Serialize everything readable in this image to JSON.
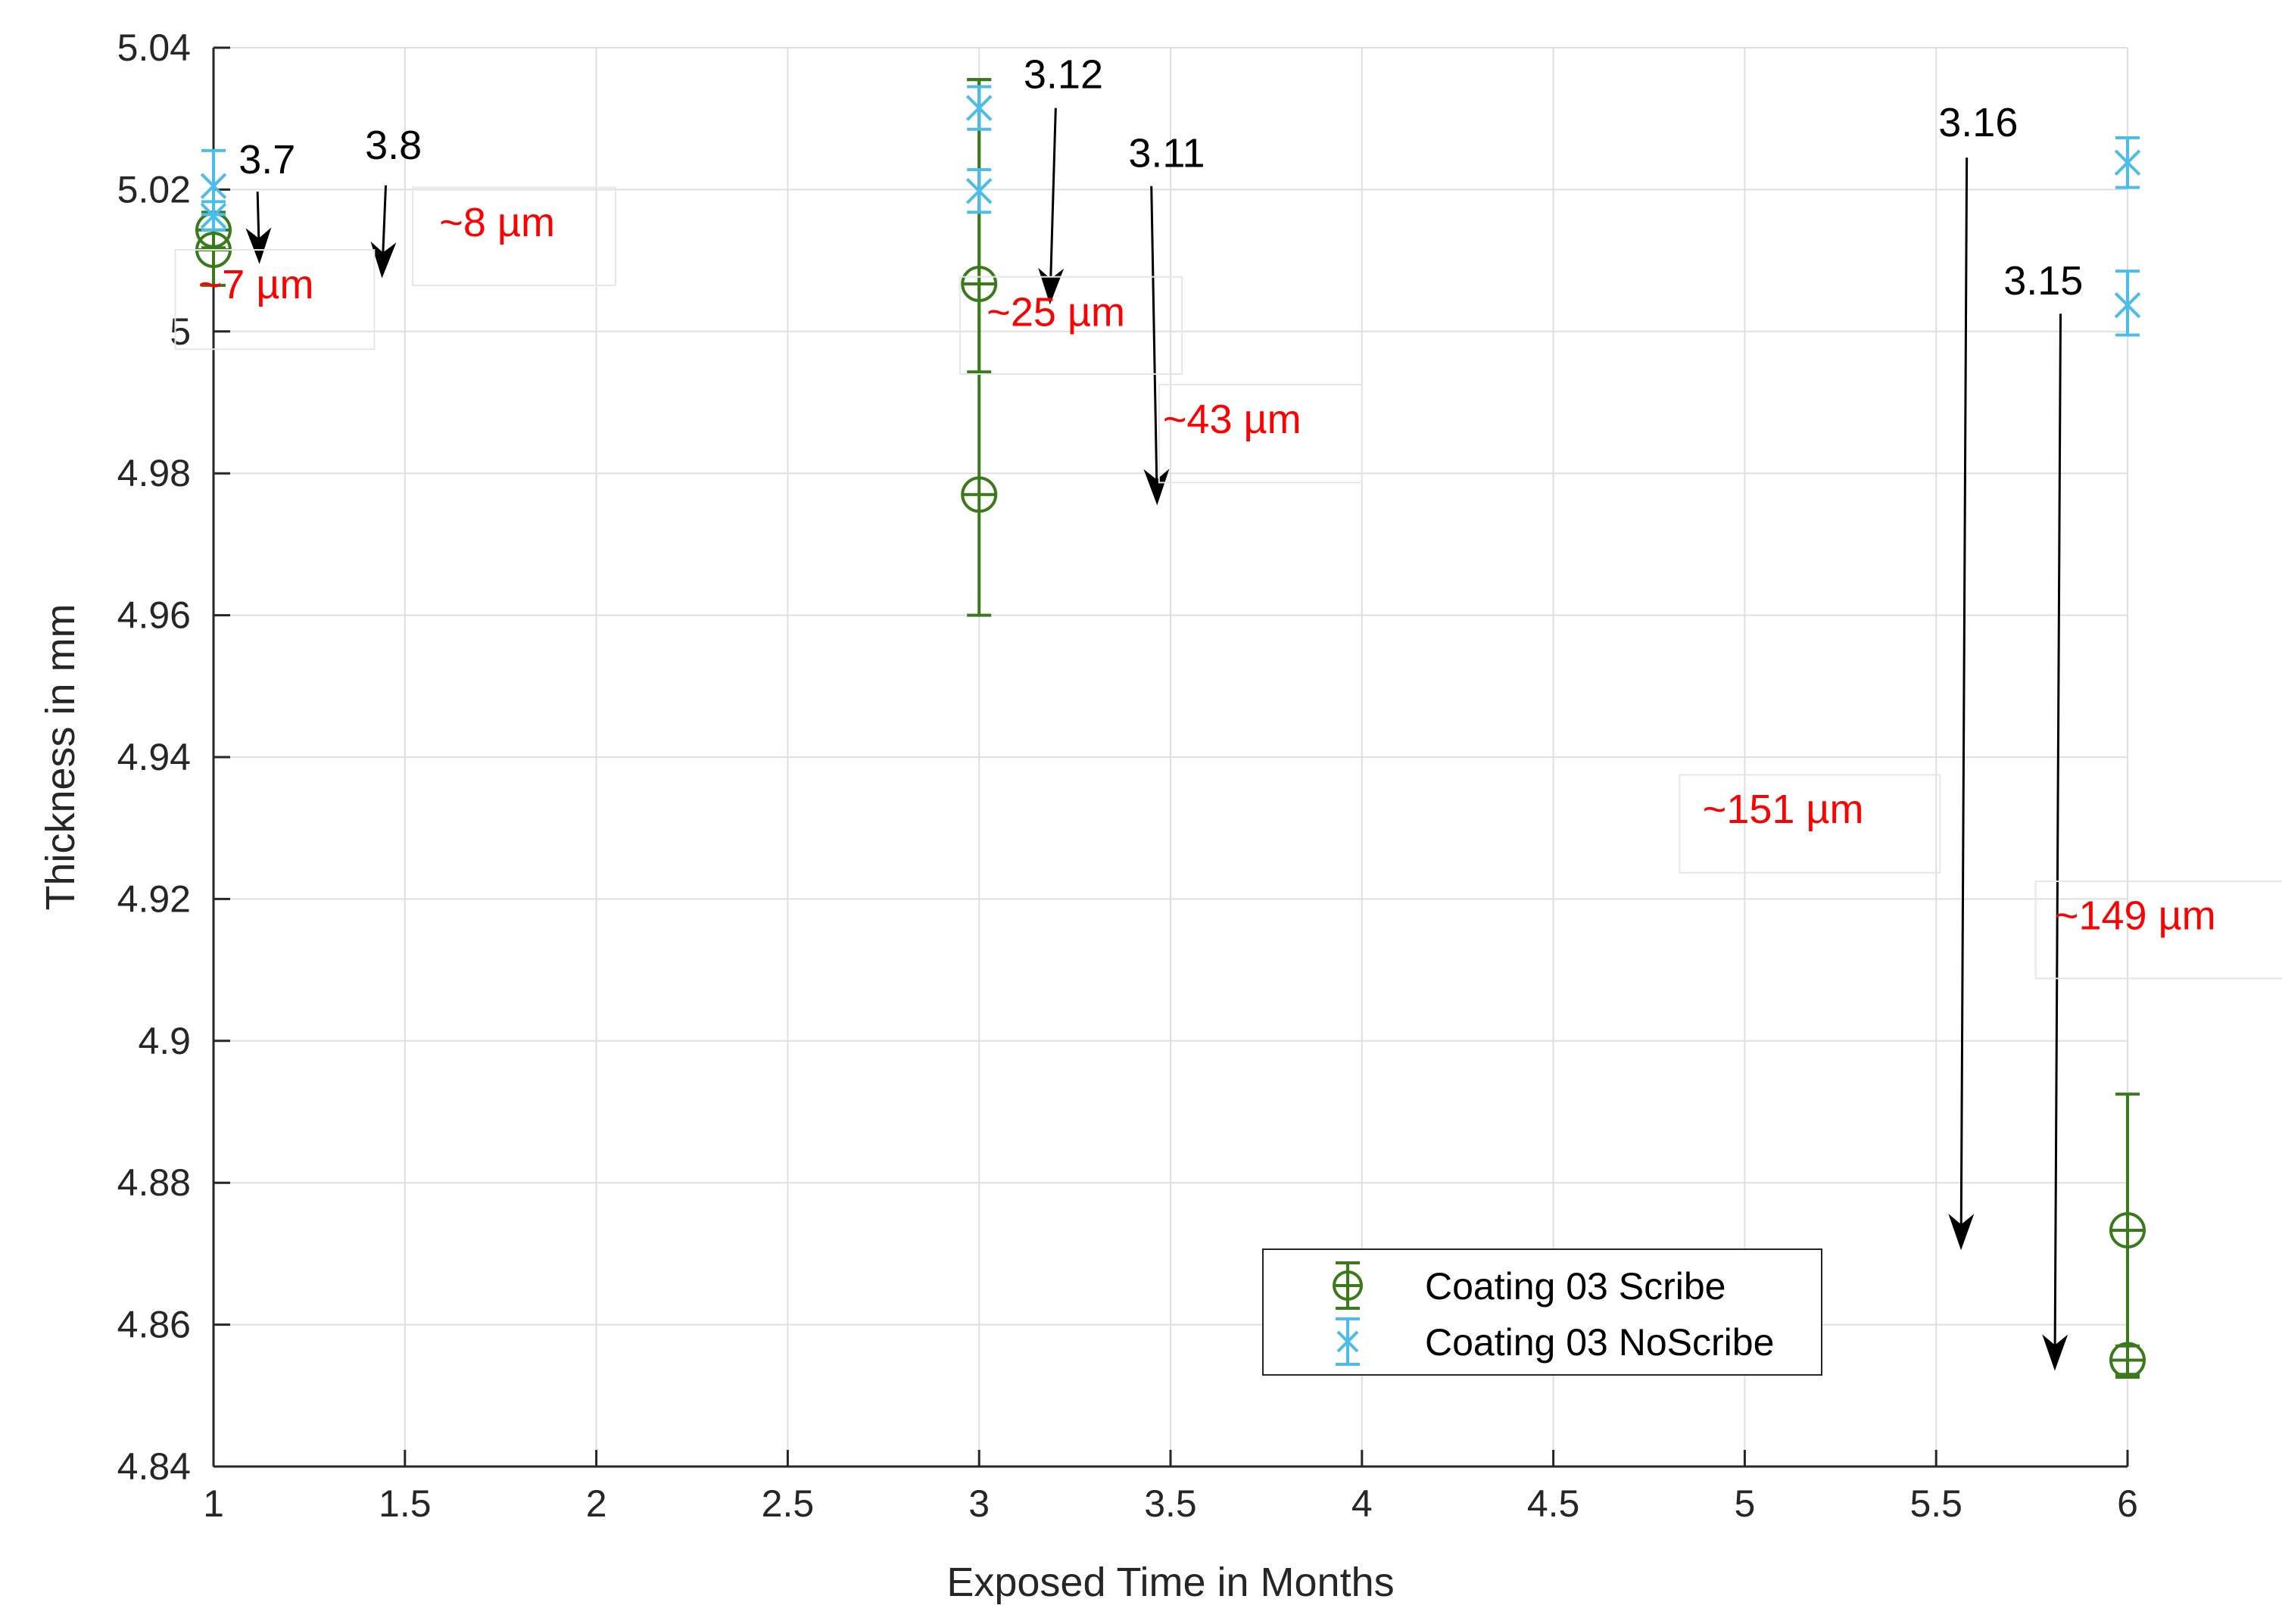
{
  "chart_data": {
    "type": "scatter",
    "title": "",
    "xlabel": "Exposed Time in Months",
    "ylabel": "Thickness in mm",
    "xlim": [
      1,
      6
    ],
    "ylim": [
      4.84,
      5.04
    ],
    "xticks": [
      {
        "value": 1,
        "label": "1"
      },
      {
        "value": 1.5,
        "label": "1.5"
      },
      {
        "value": 2,
        "label": "2"
      },
      {
        "value": 2.5,
        "label": "2.5"
      },
      {
        "value": 3,
        "label": "3"
      },
      {
        "value": 3.5,
        "label": "3.5"
      },
      {
        "value": 4,
        "label": "4"
      },
      {
        "value": 4.5,
        "label": "4.5"
      },
      {
        "value": 5,
        "label": "5"
      },
      {
        "value": 5.5,
        "label": "5.5"
      },
      {
        "value": 6,
        "label": "6"
      }
    ],
    "yticks": [
      {
        "value": 4.84,
        "label": "4.84"
      },
      {
        "value": 4.86,
        "label": "4.86"
      },
      {
        "value": 4.88,
        "label": "4.88"
      },
      {
        "value": 4.9,
        "label": "4.9"
      },
      {
        "value": 4.92,
        "label": "4.92"
      },
      {
        "value": 4.94,
        "label": "4.94"
      },
      {
        "value": 4.96,
        "label": "4.96"
      },
      {
        "value": 4.98,
        "label": "4.98"
      },
      {
        "value": 5,
        "label": "5"
      },
      {
        "value": 5.02,
        "label": "5.02"
      },
      {
        "value": 5.04,
        "label": "5.04"
      }
    ],
    "grid": true,
    "legend_position": "bottom-right",
    "series": [
      {
        "name": "Coating 03 Scribe",
        "color": "#3b7a1a",
        "marker": "circle",
        "points": [
          {
            "x": 1,
            "y": 5.0115,
            "lo": 5.0065,
            "hi": 5.0165
          },
          {
            "x": 1,
            "y": 5.0143,
            "lo": 5.0118,
            "hi": 5.0168
          },
          {
            "x": 3,
            "y": 5.0067,
            "lo": 4.9943,
            "hi": 5.0355
          },
          {
            "x": 3,
            "y": 4.977,
            "lo": 4.96,
            "hi": 5.0355
          },
          {
            "x": 6,
            "y": 4.8733,
            "lo": 4.8526,
            "hi": 4.8925
          },
          {
            "x": 6,
            "y": 4.855,
            "lo": 4.853,
            "hi": 4.857
          }
        ]
      },
      {
        "name": "Coating 03 NoScribe",
        "color": "#4cbde8",
        "marker": "x",
        "points": [
          {
            "x": 1,
            "y": 5.0205,
            "lo": 5.0165,
            "hi": 5.0255
          },
          {
            "x": 1,
            "y": 5.0163,
            "lo": 5.0143,
            "hi": 5.0183
          },
          {
            "x": 3,
            "y": 5.0315,
            "lo": 5.0285,
            "hi": 5.0345
          },
          {
            "x": 3,
            "y": 5.0198,
            "lo": 5.0168,
            "hi": 5.0228
          },
          {
            "x": 6,
            "y": 5.0238,
            "lo": 5.0203,
            "hi": 5.0273
          },
          {
            "x": 6,
            "y": 5.0037,
            "lo": 4.9995,
            "hi": 5.0085
          }
        ]
      }
    ],
    "annotations": [
      {
        "kind": "arrow",
        "label": "3.7",
        "label_at": [
          1.14,
          5.0223
        ],
        "tail": [
          1.115,
          5.0197
        ],
        "head": [
          1.12,
          5.0095
        ]
      },
      {
        "kind": "arrow",
        "label": "3.8",
        "label_at": [
          1.47,
          5.0243
        ],
        "tail": [
          1.45,
          5.0206
        ],
        "head": [
          1.44,
          5.0075
        ]
      },
      {
        "kind": "arrow",
        "label": "3.12",
        "label_at": [
          3.22,
          5.0343
        ],
        "tail": [
          3.2,
          5.0315
        ],
        "head": [
          3.185,
          5.0038
        ]
      },
      {
        "kind": "arrow",
        "label": "3.11",
        "label_at": [
          3.49,
          5.0232
        ],
        "tail": [
          3.45,
          5.0205
        ],
        "head": [
          3.465,
          4.9755
        ]
      },
      {
        "kind": "arrow",
        "label": "3.16",
        "label_at": [
          5.61,
          5.0275
        ],
        "tail": [
          5.58,
          5.0245
        ],
        "head": [
          5.565,
          4.8705
        ]
      },
      {
        "kind": "arrow",
        "label": "3.15",
        "label_at": [
          5.78,
          5.0052
        ],
        "tail": [
          5.825,
          5.0025
        ],
        "head": [
          5.81,
          4.8535
        ]
      },
      {
        "kind": "text",
        "label": "~7 µm",
        "box": [
          0.9,
          5.0115,
          1.42,
          4.9975
        ],
        "text_at": [
          0.96,
          5.0047
        ]
      },
      {
        "kind": "text",
        "label": "~8 µm",
        "box": [
          1.52,
          5.0203,
          2.05,
          5.0065
        ],
        "text_at": [
          1.59,
          5.0134
        ]
      },
      {
        "kind": "text",
        "label": "~25 µm",
        "box": [
          2.95,
          5.0077,
          3.53,
          4.994
        ],
        "text_at": [
          3.02,
          5.0008
        ]
      },
      {
        "kind": "text",
        "label": "~43 µm",
        "box": [
          3.47,
          4.9925,
          4.0,
          4.9787
        ],
        "text_at": [
          3.48,
          4.9857
        ]
      },
      {
        "kind": "text",
        "label": "~151 µm",
        "box": [
          4.83,
          4.9375,
          5.51,
          4.9237
        ],
        "text_at": [
          4.89,
          4.9307
        ]
      },
      {
        "kind": "text",
        "label": "~149 µm",
        "box": [
          5.76,
          4.9225,
          6.42,
          4.9088
        ],
        "text_at": [
          5.81,
          4.9157
        ]
      }
    ]
  }
}
